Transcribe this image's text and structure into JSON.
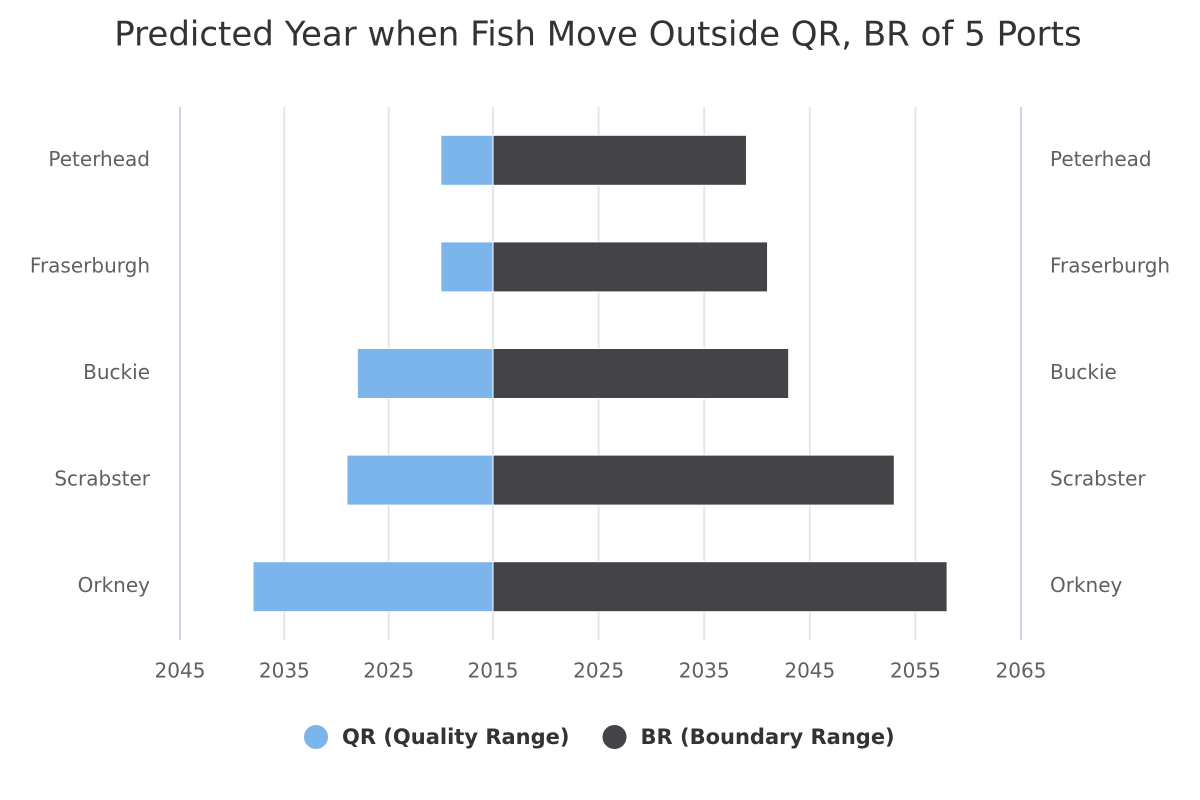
{
  "chart_data": {
    "type": "butterfly-bar",
    "title": "Predicted Year when Fish Move Outside QR, BR of 5 Ports",
    "categories": [
      "Peterhead",
      "Fraserburgh",
      "Buckie",
      "Scrabster",
      "Orkney"
    ],
    "series": [
      {
        "name": "QR (Quality Range)",
        "color": "#7cb5ec",
        "side": "left",
        "values": [
          2020,
          2020,
          2028,
          2029,
          2038
        ]
      },
      {
        "name": "BR (Boundary Range)",
        "color": "#434348",
        "side": "right",
        "values": [
          2039,
          2041,
          2043,
          2053,
          2058
        ]
      }
    ],
    "left_xlim": [
      2015,
      2045
    ],
    "left_xticks": [
      2015,
      2025,
      2035,
      2045
    ],
    "xlim": [
      2015,
      2065
    ],
    "xticks": [
      2025,
      2035,
      2045,
      2055,
      2065
    ],
    "grid": true,
    "legend": "bottom"
  }
}
